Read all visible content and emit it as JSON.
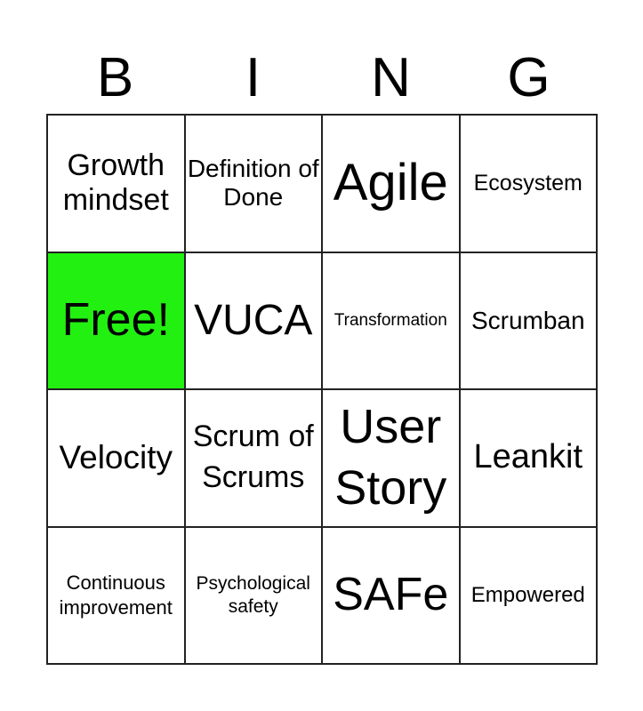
{
  "header": {
    "letters": [
      "B",
      "I",
      "N",
      "G"
    ]
  },
  "free_color": "#22f011",
  "cells": [
    "Growth mindset",
    "Definition of Done",
    "Agile",
    "Ecosystem",
    "Free!",
    "VUCA",
    "Transformation",
    "Scrumban",
    "Velocity",
    "Scrum of Scrums",
    "User Story",
    "Leankit",
    "Continuous improvement",
    "Psychological safety",
    "SAFe",
    "Empowered"
  ]
}
